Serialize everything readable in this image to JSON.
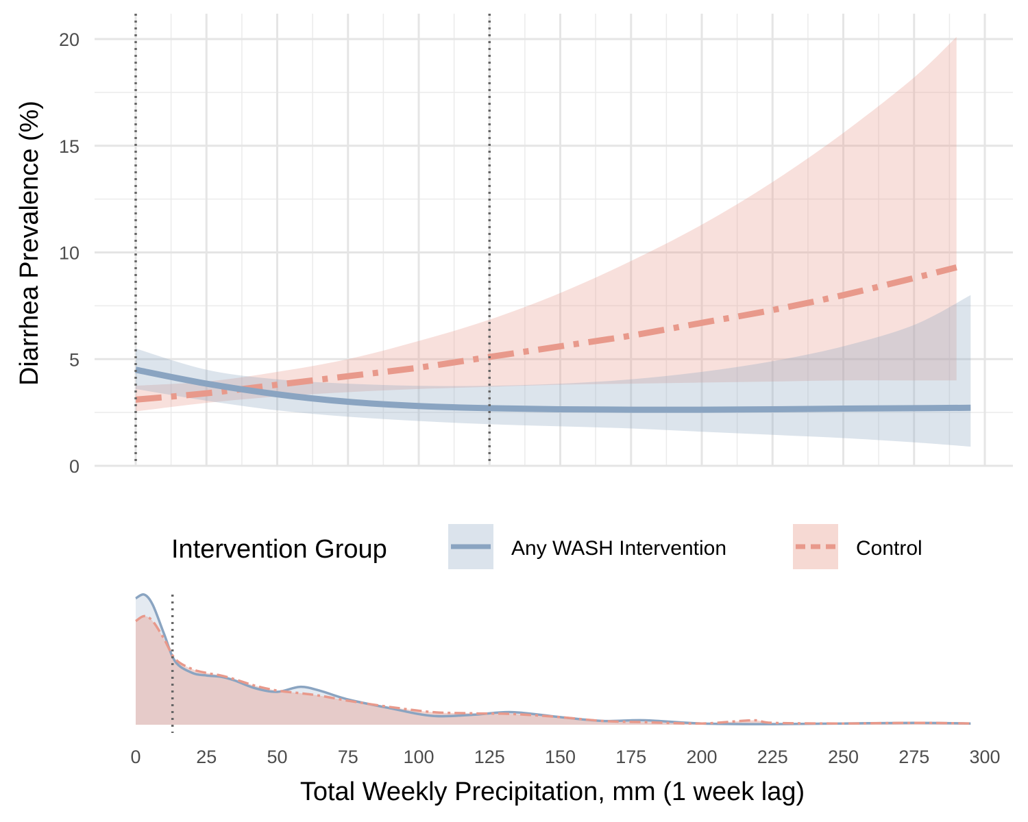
{
  "chart_data": [
    {
      "type": "line",
      "panel": "prevalence",
      "ylabel": "Diarrhea Prevalence (%)",
      "xlim": [
        0,
        300
      ],
      "ylim": [
        0,
        20
      ],
      "y_ticks": [
        0,
        5,
        10,
        15,
        20
      ],
      "x_ticks": [
        0,
        25,
        50,
        75,
        100,
        125,
        150,
        175,
        200,
        225,
        250,
        275,
        300
      ],
      "grid": true,
      "reference_lines_x": [
        0,
        125
      ],
      "series": [
        {
          "name": "Any WASH Intervention",
          "line_style": "solid",
          "color": "#8aa4c1",
          "band_color": "#dbe3ec",
          "x": [
            0,
            25,
            50,
            75,
            100,
            125,
            150,
            175,
            200,
            225,
            250,
            275,
            295
          ],
          "y": [
            4.5,
            3.85,
            3.35,
            3.0,
            2.8,
            2.7,
            2.65,
            2.63,
            2.63,
            2.65,
            2.68,
            2.7,
            2.72
          ],
          "lower": [
            3.6,
            3.05,
            2.6,
            2.3,
            2.1,
            1.95,
            1.85,
            1.75,
            1.6,
            1.45,
            1.3,
            1.1,
            0.9
          ],
          "upper": [
            5.5,
            4.5,
            4.05,
            3.85,
            3.75,
            3.75,
            3.85,
            4.05,
            4.4,
            4.9,
            5.6,
            6.6,
            8.0
          ]
        },
        {
          "name": "Control",
          "line_style": "dashed",
          "color": "#e8998b",
          "band_color": "#f6d9d3",
          "x": [
            0,
            25,
            50,
            75,
            100,
            125,
            150,
            175,
            200,
            225,
            250,
            275,
            290
          ],
          "y": [
            3.1,
            3.4,
            3.8,
            4.2,
            4.6,
            5.1,
            5.6,
            6.1,
            6.7,
            7.3,
            8.0,
            8.8,
            9.3
          ],
          "lower": [
            2.55,
            2.95,
            3.25,
            3.45,
            3.6,
            3.7,
            3.8,
            3.85,
            3.9,
            3.95,
            4.0,
            4.0,
            4.0
          ],
          "upper": [
            3.75,
            3.95,
            4.4,
            5.0,
            5.85,
            6.85,
            8.1,
            9.6,
            11.3,
            13.3,
            15.6,
            18.2,
            20.1
          ]
        }
      ]
    },
    {
      "type": "area",
      "panel": "density",
      "xlabel": "Total Weekly Precipitation, mm (1 week lag)",
      "xlim": [
        0,
        300
      ],
      "x_ticks": [
        0,
        25,
        50,
        75,
        100,
        125,
        150,
        175,
        200,
        225,
        250,
        275,
        300
      ],
      "reference_lines_x": [
        13
      ],
      "series": [
        {
          "name": "Any WASH Intervention",
          "line_style": "solid",
          "color": "#8aa4c1",
          "x": [
            0,
            3,
            6,
            10,
            14,
            20,
            25,
            30,
            35,
            42,
            50,
            58,
            65,
            75,
            90,
            105,
            120,
            133,
            150,
            165,
            180,
            200,
            225,
            250,
            275,
            295
          ],
          "density": [
            1.0,
            1.03,
            0.95,
            0.72,
            0.5,
            0.41,
            0.39,
            0.38,
            0.35,
            0.29,
            0.26,
            0.3,
            0.27,
            0.2,
            0.13,
            0.07,
            0.08,
            0.1,
            0.06,
            0.03,
            0.035,
            0.01,
            0.005,
            0.01,
            0.015,
            0.01
          ]
        },
        {
          "name": "Control",
          "line_style": "dashed",
          "color": "#e8998b",
          "x": [
            0,
            3,
            6,
            10,
            14,
            20,
            25,
            30,
            35,
            42,
            50,
            58,
            65,
            75,
            90,
            105,
            120,
            133,
            150,
            165,
            180,
            200,
            218,
            225,
            250,
            275,
            295
          ],
          "density": [
            0.82,
            0.86,
            0.82,
            0.68,
            0.52,
            0.44,
            0.41,
            0.39,
            0.36,
            0.31,
            0.27,
            0.25,
            0.23,
            0.19,
            0.14,
            0.1,
            0.09,
            0.085,
            0.06,
            0.03,
            0.02,
            0.01,
            0.035,
            0.015,
            0.01,
            0.015,
            0.01
          ]
        }
      ]
    }
  ],
  "legend": {
    "title": "Intervention Group",
    "items": [
      {
        "label": "Any WASH Intervention",
        "line_style": "solid",
        "color": "#8aa4c1",
        "fill": "#dbe3ec"
      },
      {
        "label": "Control",
        "line_style": "dashed",
        "color": "#e8998b",
        "fill": "#f6d9d3"
      }
    ]
  }
}
